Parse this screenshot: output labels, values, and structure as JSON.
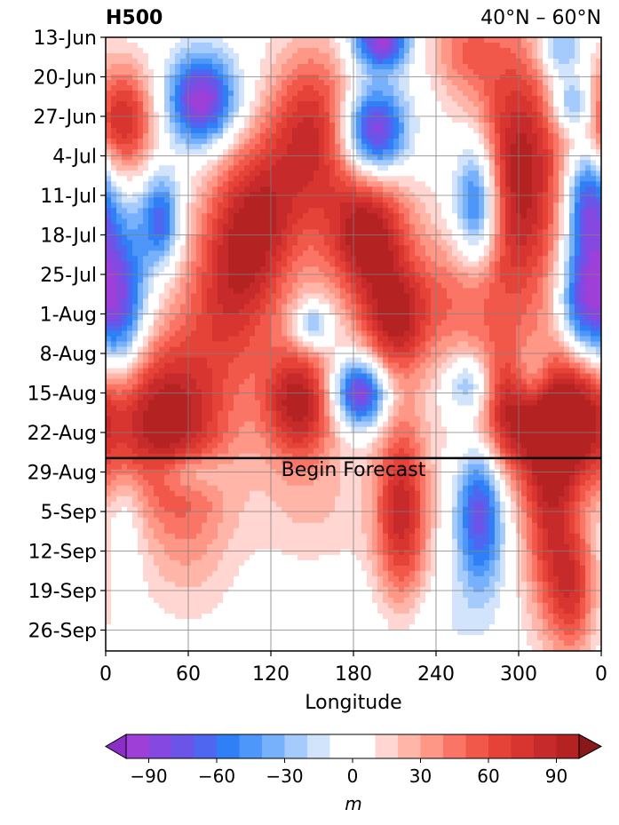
{
  "chart_data": {
    "type": "heatmap",
    "title_left": "H500",
    "title_right": "40°N – 60°N",
    "xlabel": "Longitude",
    "ylabel": "",
    "x_ticks": [
      "0",
      "60",
      "120",
      "180",
      "240",
      "300",
      "0"
    ],
    "y_ticks": [
      "13-Jun",
      "20-Jun",
      "27-Jun",
      "4-Jul",
      "11-Jul",
      "18-Jul",
      "25-Jul",
      "1-Aug",
      "8-Aug",
      "15-Aug",
      "22-Aug",
      "29-Aug",
      "5-Sep",
      "12-Sep",
      "19-Sep",
      "26-Sep"
    ],
    "annotation": "Begin Forecast",
    "forecast_start_row": 10.65,
    "grid": true,
    "colorbar": {
      "label": "m",
      "levels": [
        -100,
        -90,
        -80,
        -70,
        -60,
        -50,
        -40,
        -30,
        -20,
        -10,
        10,
        20,
        30,
        40,
        50,
        60,
        70,
        80,
        90,
        100
      ],
      "tick_labels": [
        "−90",
        "−60",
        "−30",
        "0",
        "30",
        "60",
        "90"
      ],
      "tick_values": [
        -90,
        -60,
        -30,
        0,
        30,
        60,
        90
      ],
      "colors": [
        "#9e3fd8",
        "#8548e0",
        "#6a55e8",
        "#4f66f0",
        "#2f7ff6",
        "#4d96fa",
        "#78b1fb",
        "#a4cbfb",
        "#d2e4fb",
        "#ffffff",
        "#ffd6d1",
        "#ffb6a9",
        "#ff9787",
        "#fb7566",
        "#f2584a",
        "#e54338",
        "#d83430",
        "#c62a2a",
        "#b42222"
      ],
      "extend": "both"
    },
    "anomaly_features": [
      {
        "lon": 200,
        "week": 0.1,
        "amp": -95,
        "slon": 14,
        "swk": 0.5
      },
      {
        "lon": 330,
        "week": 0.3,
        "amp": -50,
        "slon": 12,
        "swk": 0.6
      },
      {
        "lon": 260,
        "week": 0.3,
        "amp": 40,
        "slon": 18,
        "swk": 0.8
      },
      {
        "lon": 70,
        "week": 1.6,
        "amp": -100,
        "slon": 18,
        "swk": 0.8
      },
      {
        "lon": 195,
        "week": 2.4,
        "amp": -100,
        "slon": 16,
        "swk": 0.8
      },
      {
        "lon": 10,
        "week": 2.1,
        "amp": 85,
        "slon": 18,
        "swk": 1.0
      },
      {
        "lon": 150,
        "week": 2.3,
        "amp": 75,
        "slon": 22,
        "swk": 1.5
      },
      {
        "lon": 300,
        "week": 3.5,
        "amp": 100,
        "slon": 25,
        "swk": 2.5
      },
      {
        "lon": 340,
        "week": 1.7,
        "amp": -60,
        "slon": 12,
        "swk": 0.5
      },
      {
        "lon": 270,
        "week": 4.2,
        "amp": -95,
        "slon": 12,
        "swk": 1.2
      },
      {
        "lon": 350,
        "week": 4.2,
        "amp": -85,
        "slon": 12,
        "swk": 1.2
      },
      {
        "lon": 190,
        "week": 5.0,
        "amp": 100,
        "slon": 22,
        "swk": 1.2
      },
      {
        "lon": 110,
        "week": 4.5,
        "amp": 80,
        "slon": 25,
        "swk": 1.5
      },
      {
        "lon": 40,
        "week": 4.6,
        "amp": -70,
        "slon": 10,
        "swk": 0.8
      },
      {
        "lon": 10,
        "week": 6.8,
        "amp": -90,
        "slon": 14,
        "swk": 1.5
      },
      {
        "lon": 90,
        "week": 6.6,
        "amp": 60,
        "slon": 25,
        "swk": 1.5
      },
      {
        "lon": 345,
        "week": 6.8,
        "amp": -70,
        "slon": 12,
        "swk": 1.0
      },
      {
        "lon": 255,
        "week": 6.6,
        "amp": 40,
        "slon": 25,
        "swk": 1.2
      },
      {
        "lon": 210,
        "week": 7.2,
        "amp": 80,
        "slon": 18,
        "swk": 1.0
      },
      {
        "lon": 150,
        "week": 7.3,
        "amp": -50,
        "slon": 10,
        "swk": 0.4
      },
      {
        "lon": 40,
        "week": 9.6,
        "amp": 100,
        "slon": 35,
        "swk": 1.5
      },
      {
        "lon": 185,
        "week": 9.0,
        "amp": -100,
        "slon": 14,
        "swk": 0.6
      },
      {
        "lon": 140,
        "week": 9.2,
        "amp": 90,
        "slon": 18,
        "swk": 1.0
      },
      {
        "lon": 290,
        "week": 9.6,
        "amp": 90,
        "slon": 22,
        "swk": 1.2
      },
      {
        "lon": 340,
        "week": 9.6,
        "amp": 80,
        "slon": 18,
        "swk": 1.2
      },
      {
        "lon": 265,
        "week": 8.8,
        "amp": -60,
        "slon": 12,
        "swk": 0.6
      },
      {
        "lon": 310,
        "week": 8.5,
        "amp": -40,
        "slon": 10,
        "swk": 0.6
      },
      {
        "lon": 60,
        "week": 11.0,
        "amp": -40,
        "slon": 18,
        "swk": 0.4
      },
      {
        "lon": 215,
        "week": 12.0,
        "amp": 85,
        "slon": 14,
        "swk": 1.8
      },
      {
        "lon": 272,
        "week": 11.8,
        "amp": -85,
        "slon": 12,
        "swk": 1.5
      },
      {
        "lon": 322,
        "week": 12.0,
        "amp": 70,
        "slon": 14,
        "swk": 2.0
      },
      {
        "lon": 340,
        "week": 14.0,
        "amp": 60,
        "slon": 12,
        "swk": 1.2
      },
      {
        "lon": 150,
        "week": 12.0,
        "amp": 25,
        "slon": 30,
        "swk": 1.8
      },
      {
        "lon": 60,
        "week": 12.5,
        "amp": 30,
        "slon": 25,
        "swk": 1.5
      },
      {
        "lon": 15,
        "week": 12.0,
        "amp": -20,
        "slon": 10,
        "swk": 1.0
      },
      {
        "lon": 150,
        "week": 14.5,
        "amp": -15,
        "slon": 30,
        "swk": 1.5
      },
      {
        "lon": 230,
        "week": 15.0,
        "amp": -12,
        "slon": 25,
        "swk": 1.0
      }
    ]
  }
}
